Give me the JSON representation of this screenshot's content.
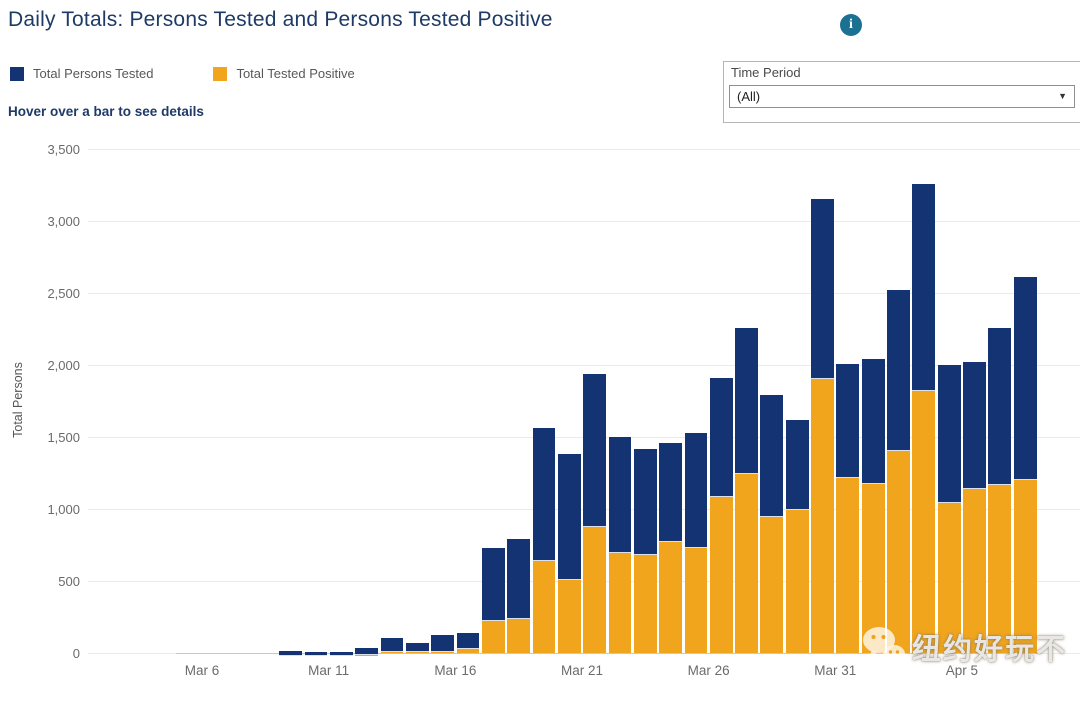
{
  "header": {
    "title": "Daily Totals: Persons Tested and Persons Tested Positive",
    "hover_hint": "Hover over a bar to see details",
    "info_icon_glyph": "i"
  },
  "legend": {
    "items": [
      {
        "label": "Total Persons Tested",
        "color": "#143372"
      },
      {
        "label": "Total Tested Positive",
        "color": "#f0a51d"
      }
    ]
  },
  "filter": {
    "label": "Time Period",
    "value": "(All)",
    "caret": "▼"
  },
  "watermark": {
    "icon": "wechat-icon",
    "text": "纽约好玩不"
  },
  "colors": {
    "navy": "#143372",
    "orange": "#f0a51d",
    "title_text": "#1e3a66",
    "info_icon_bg": "#1b7191",
    "gridline": "#ebebeb",
    "axis_line": "#c7c7c7",
    "tick_text": "#6b6b6b"
  },
  "chart_data": {
    "type": "bar",
    "stacked": true,
    "title": "Daily Totals: Persons Tested and Persons Tested Positive",
    "xlabel": "",
    "ylabel": "Total Persons",
    "ylim": [
      0,
      3500
    ],
    "ytick_step": 500,
    "ytick_labels": [
      "0",
      "500",
      "1,000",
      "1,500",
      "2,000",
      "2,500",
      "3,000",
      "3,500"
    ],
    "grid": true,
    "legend_position": "top-left",
    "stack_note": "Orange (Total Tested Positive) is drawn at the bottom of each bar; navy fills the remainder up to Total Persons Tested.",
    "x": [
      "Mar 5",
      "Mar 6",
      "Mar 7",
      "Mar 8",
      "Mar 9",
      "Mar 10",
      "Mar 11",
      "Mar 12",
      "Mar 13",
      "Mar 14",
      "Mar 15",
      "Mar 16",
      "Mar 17",
      "Mar 18",
      "Mar 19",
      "Mar 20",
      "Mar 21",
      "Mar 22",
      "Mar 23",
      "Mar 24",
      "Mar 25",
      "Mar 26",
      "Mar 27",
      "Mar 28",
      "Mar 29",
      "Mar 30",
      "Mar 31",
      "Apr 1",
      "Apr 2",
      "Apr 3",
      "Apr 4",
      "Apr 5",
      "Apr 6",
      "Apr 7"
    ],
    "xtick_labels": [
      "Mar 6",
      "Mar 11",
      "Mar 16",
      "Mar 21",
      "Mar 26",
      "Mar 31",
      "Apr 5"
    ],
    "xtick_indices": [
      1,
      6,
      11,
      16,
      21,
      26,
      31
    ],
    "series": [
      {
        "name": "Total Persons Tested",
        "color": "#143372",
        "values": [
          0,
          0,
          0,
          0,
          35,
          30,
          30,
          55,
          105,
          70,
          125,
          140,
          730,
          790,
          1560,
          1380,
          1940,
          1500,
          1420,
          1460,
          1530,
          1910,
          2260,
          1790,
          1620,
          3150,
          2010,
          2040,
          2520,
          3260,
          2000,
          2020,
          2260,
          2610
        ]
      },
      {
        "name": "Total Tested Positive",
        "color": "#f0a51d",
        "values": [
          0,
          0,
          0,
          0,
          0,
          0,
          0,
          5,
          5,
          10,
          10,
          25,
          225,
          235,
          640,
          510,
          875,
          695,
          680,
          770,
          730,
          1080,
          1240,
          945,
          995,
          1900,
          1215,
          1175,
          1400,
          1820,
          1040,
          1140,
          1165,
          1200
        ]
      }
    ]
  }
}
